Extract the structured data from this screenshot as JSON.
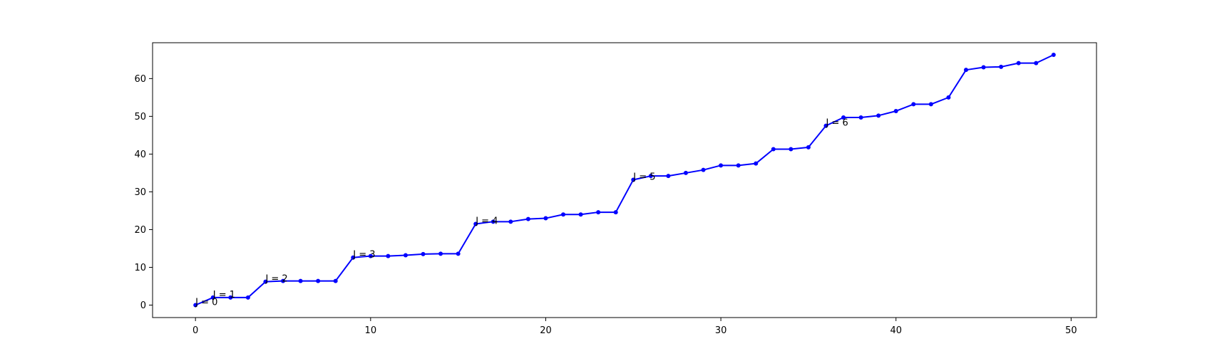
{
  "chart_data": {
    "type": "line",
    "title": "",
    "xlabel": "",
    "ylabel": "",
    "xlim": [
      -2.45,
      51.45
    ],
    "ylim": [
      -3.3,
      69.5
    ],
    "xticks": [
      0,
      10,
      20,
      30,
      40,
      50
    ],
    "yticks": [
      0,
      10,
      20,
      30,
      40,
      50,
      60
    ],
    "grid": false,
    "legend": "none",
    "series": [
      {
        "color": "#0000ff",
        "marker": "dot",
        "x": [
          0,
          1,
          2,
          3,
          4,
          5,
          6,
          7,
          8,
          9,
          10,
          11,
          12,
          13,
          14,
          15,
          16,
          17,
          18,
          19,
          20,
          21,
          22,
          23,
          24,
          25,
          26,
          27,
          28,
          29,
          30,
          31,
          32,
          33,
          34,
          35,
          36,
          37,
          38,
          39,
          40,
          41,
          42,
          43,
          44,
          45,
          46,
          47,
          48,
          49
        ],
        "y": [
          0,
          2,
          2,
          2,
          6.2,
          6.4,
          6.4,
          6.4,
          6.4,
          12.6,
          13,
          13,
          13.2,
          13.5,
          13.6,
          13.6,
          21.5,
          22.1,
          22.1,
          22.8,
          23,
          24,
          24,
          24.6,
          24.6,
          33.2,
          34.2,
          34.2,
          35,
          35.8,
          37,
          37,
          37.5,
          41.3,
          41.3,
          41.8,
          47.5,
          49.7,
          49.7,
          50.2,
          51.4,
          53.2,
          53.2,
          55,
          62.3,
          63,
          63.1,
          64.1,
          64.1,
          66.3
        ]
      }
    ],
    "annotations": [
      {
        "text": "J = 0",
        "x": 0,
        "y": 0
      },
      {
        "text": "J = 1",
        "x": 1,
        "y": 2
      },
      {
        "text": "J = 2",
        "x": 4,
        "y": 6.2
      },
      {
        "text": "J = 3",
        "x": 9,
        "y": 12.6
      },
      {
        "text": "J = 4",
        "x": 16,
        "y": 21.5
      },
      {
        "text": "J = 5",
        "x": 25,
        "y": 33.2
      },
      {
        "text": "J = 6",
        "x": 36,
        "y": 47.5
      }
    ]
  }
}
